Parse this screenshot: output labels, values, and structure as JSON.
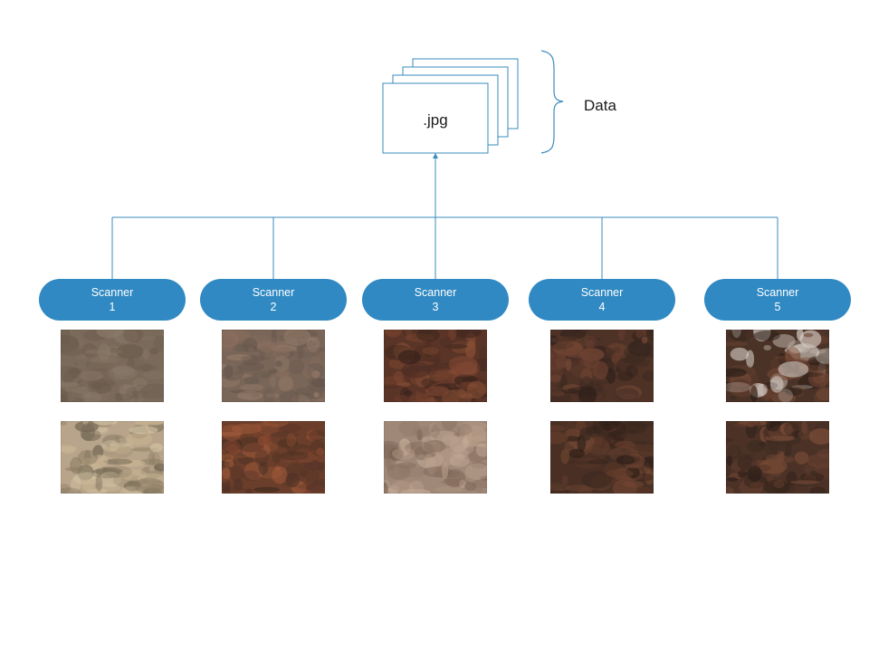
{
  "document": {
    "label": ".jpg",
    "stack_count": 4
  },
  "brace": {
    "label": "Data"
  },
  "colors": {
    "line": "#3a8bbd",
    "pill": "#3089c2",
    "doc_stroke": "#3a8bbd",
    "pill_text": "#ffffff"
  },
  "scanners": [
    {
      "name": "Scanner",
      "number": "1",
      "samples": [
        {
          "base": "#7a6a5a",
          "tones": [
            "#6f6052",
            "#857363",
            "#6a5a4b",
            "#8a7a6a"
          ]
        },
        {
          "base": "#b8a48a",
          "tones": [
            "#d8c8a8",
            "#8a7a62",
            "#c9b593",
            "#6e6350"
          ]
        }
      ]
    },
    {
      "name": "Scanner",
      "number": "2",
      "samples": [
        {
          "base": "#7a6658",
          "tones": [
            "#8a6e5e",
            "#5e5048",
            "#9a7e6c",
            "#6a5a50"
          ]
        },
        {
          "base": "#6a3e2a",
          "tones": [
            "#8a4a30",
            "#3e2a20",
            "#a05a3a",
            "#503228"
          ]
        }
      ]
    },
    {
      "name": "Scanner",
      "number": "3",
      "samples": [
        {
          "base": "#5a3426",
          "tones": [
            "#7a4430",
            "#32201a",
            "#8a5036",
            "#4a2c22"
          ]
        },
        {
          "base": "#a08878",
          "tones": [
            "#b89e8a",
            "#8a7262",
            "#c4ac98",
            "#7a6254"
          ]
        }
      ]
    },
    {
      "name": "Scanner",
      "number": "4",
      "samples": [
        {
          "base": "#4e3226",
          "tones": [
            "#6a4030",
            "#2e201a",
            "#7a4a36",
            "#3e2a22"
          ]
        },
        {
          "base": "#4a3024",
          "tones": [
            "#643c2c",
            "#2c1e18",
            "#744834",
            "#3a2820"
          ]
        }
      ]
    },
    {
      "name": "Scanner",
      "number": "5",
      "samples": [
        {
          "base": "#4a3226",
          "tones": [
            "#664030",
            "#2a1e18",
            "#7a4c38",
            "#d8d0c8"
          ]
        },
        {
          "base": "#4c3226",
          "tones": [
            "#6a4232",
            "#2c1e18",
            "#7e4e38",
            "#3c2a22"
          ]
        }
      ]
    }
  ]
}
